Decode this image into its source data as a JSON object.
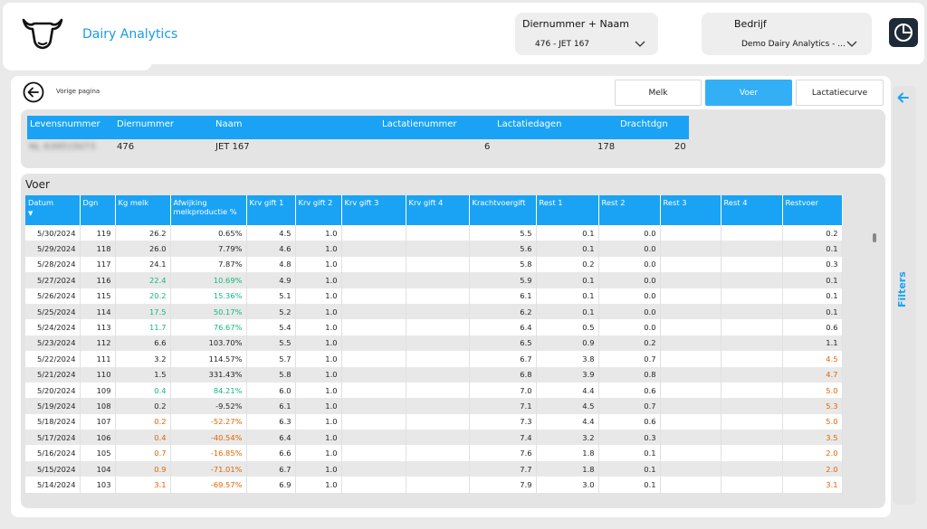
{
  "header": {
    "app_title": "Dairy Analytics",
    "slicer_animal": {
      "label": "Diernummer + Naam",
      "value": "476 - JET 167"
    },
    "slicer_company": {
      "label": "Bedrijf",
      "value": "Demo Dairy Analytics - ..."
    }
  },
  "nav": {
    "back_label": "Vorige pagina"
  },
  "tabs": [
    {
      "label": "Melk",
      "active": false
    },
    {
      "label": "Voer",
      "active": true
    },
    {
      "label": "Lactatiecurve",
      "active": false
    }
  ],
  "animal_info": {
    "headers": [
      "Levensnummer",
      "Diernummer",
      "Naam",
      "Lactatienummer",
      "Lactatiedagen",
      "Drachtdgn"
    ],
    "values": [
      "NL 639515073",
      "476",
      "JET 167",
      "6",
      "178",
      "20"
    ]
  },
  "voer": {
    "title": "Voer",
    "columns": [
      "Datum",
      "Dgn",
      "Kg melk",
      "Afwijking melkproductie %",
      "Krv gift 1",
      "Krv gift 2",
      "Krv gift 3",
      "Krv gift 4",
      "Krachtvoergift",
      "Rest 1",
      "Rest 2",
      "Rest 3",
      "Rest 4",
      "Restvoer"
    ],
    "sort_indicator": "▼",
    "rows": [
      [
        "5/30/2024",
        "119",
        "26.2",
        "0.65%",
        "4.5",
        "1.0",
        "",
        "",
        "5.5",
        "0.1",
        "0.0",
        "",
        "",
        "0.2"
      ],
      [
        "5/29/2024",
        "118",
        "26.0",
        "7.79%",
        "4.6",
        "1.0",
        "",
        "",
        "5.6",
        "0.1",
        "0.0",
        "",
        "",
        "0.1"
      ],
      [
        "5/28/2024",
        "117",
        "24.1",
        "7.87%",
        "4.8",
        "1.0",
        "",
        "",
        "5.8",
        "0.2",
        "0.0",
        "",
        "",
        "0.3"
      ],
      [
        "5/27/2024",
        "116",
        "22.4",
        "10.69%",
        "4.9",
        "1.0",
        "",
        "",
        "5.9",
        "0.1",
        "0.0",
        "",
        "",
        "0.1"
      ],
      [
        "5/26/2024",
        "115",
        "20.2",
        "15.36%",
        "5.1",
        "1.0",
        "",
        "",
        "6.1",
        "0.1",
        "0.0",
        "",
        "",
        "0.1"
      ],
      [
        "5/25/2024",
        "114",
        "17.5",
        "50.17%",
        "5.2",
        "1.0",
        "",
        "",
        "6.2",
        "0.1",
        "0.0",
        "",
        "",
        "0.1"
      ],
      [
        "5/24/2024",
        "113",
        "11.7",
        "76.67%",
        "5.4",
        "1.0",
        "",
        "",
        "6.4",
        "0.5",
        "0.0",
        "",
        "",
        "0.6"
      ],
      [
        "5/23/2024",
        "112",
        "6.6",
        "103.70%",
        "5.5",
        "1.0",
        "",
        "",
        "6.5",
        "0.9",
        "0.2",
        "",
        "",
        "1.1"
      ],
      [
        "5/22/2024",
        "111",
        "3.2",
        "114.57%",
        "5.7",
        "1.0",
        "",
        "",
        "6.7",
        "3.8",
        "0.7",
        "",
        "",
        "4.5"
      ],
      [
        "5/21/2024",
        "110",
        "1.5",
        "331.43%",
        "5.8",
        "1.0",
        "",
        "",
        "6.8",
        "3.9",
        "0.8",
        "",
        "",
        "4.7"
      ],
      [
        "5/20/2024",
        "109",
        "0.4",
        "84.21%",
        "6.0",
        "1.0",
        "",
        "",
        "7.0",
        "4.4",
        "0.6",
        "",
        "",
        "5.0"
      ],
      [
        "5/19/2024",
        "108",
        "0.2",
        "-9.52%",
        "6.1",
        "1.0",
        "",
        "",
        "7.1",
        "4.5",
        "0.7",
        "",
        "",
        "5.3"
      ],
      [
        "5/18/2024",
        "107",
        "0.2",
        "-52.27%",
        "6.3",
        "1.0",
        "",
        "",
        "7.3",
        "4.4",
        "0.6",
        "",
        "",
        "5.0"
      ],
      [
        "5/17/2024",
        "106",
        "0.4",
        "-40.54%",
        "6.4",
        "1.0",
        "",
        "",
        "7.4",
        "3.2",
        "0.3",
        "",
        "",
        "3.5"
      ],
      [
        "5/16/2024",
        "105",
        "0.7",
        "-16.85%",
        "6.6",
        "1.0",
        "",
        "",
        "7.6",
        "1.8",
        "0.1",
        "",
        "",
        "2.0"
      ],
      [
        "5/15/2024",
        "104",
        "0.9",
        "-71.01%",
        "6.7",
        "1.0",
        "",
        "",
        "7.7",
        "1.8",
        "0.1",
        "",
        "",
        "2.0"
      ],
      [
        "5/14/2024",
        "103",
        "3.1",
        "-69.57%",
        "6.9",
        "1.0",
        "",
        "",
        "7.9",
        "3.0",
        "0.1",
        "",
        "",
        "3.1"
      ]
    ],
    "row_colors": [
      [
        "",
        "",
        ""
      ],
      [
        "",
        "",
        ""
      ],
      [
        "",
        "",
        ""
      ],
      [
        "g",
        "g",
        ""
      ],
      [
        "g",
        "g",
        ""
      ],
      [
        "g",
        "g",
        ""
      ],
      [
        "g",
        "g",
        ""
      ],
      [
        "",
        "",
        ""
      ],
      [
        "",
        "",
        "o"
      ],
      [
        "",
        "",
        "o"
      ],
      [
        "g",
        "g",
        "o"
      ],
      [
        "",
        "",
        "o"
      ],
      [
        "o",
        "o",
        "o"
      ],
      [
        "o",
        "o",
        "o"
      ],
      [
        "o",
        "o",
        "o"
      ],
      [
        "o",
        "o",
        "o"
      ],
      [
        "o",
        "o",
        "o"
      ]
    ]
  },
  "filters": {
    "label": "Filters"
  },
  "colors": {
    "accent": "#1aa3f5",
    "positive": "#13b87a",
    "negative": "#e06500",
    "dark_button": "#1e2a38"
  },
  "icons": {
    "logo": "cow-head-icon",
    "search": "search-icon",
    "dashboard": "pie-chart-icon",
    "back": "back-arrow-icon",
    "chevron": "chevron-down-icon",
    "filters_arrow": "arrow-left-icon"
  }
}
